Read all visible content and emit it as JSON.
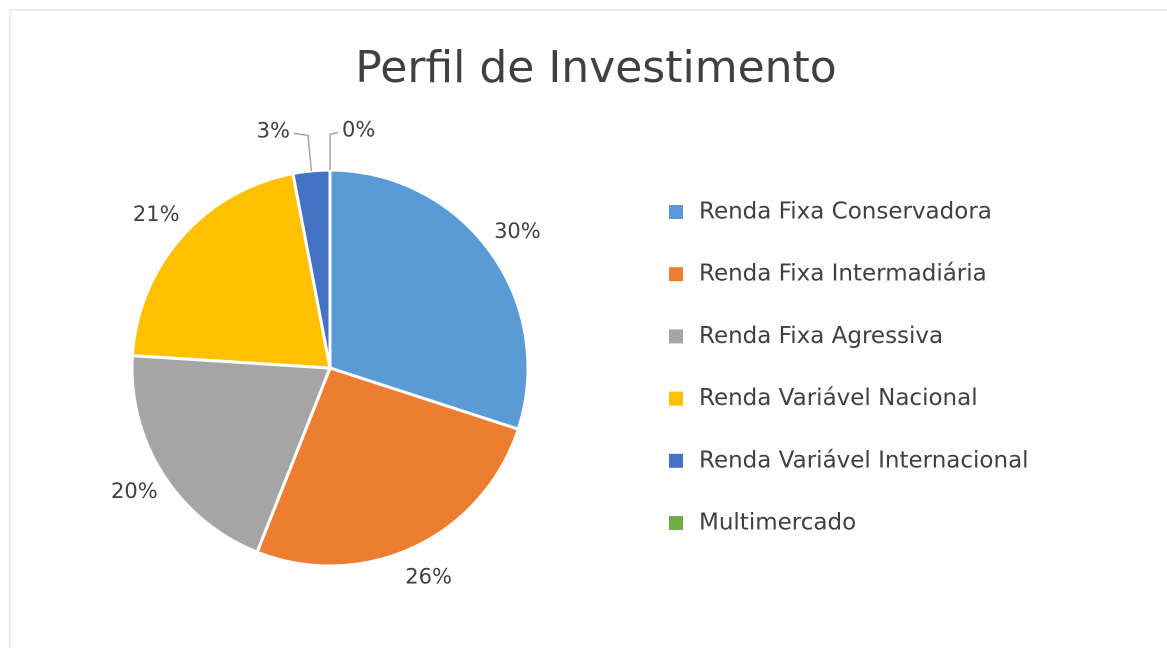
{
  "chart_data": {
    "type": "pie",
    "title": "Perfil de Investimento",
    "categories": [
      "Renda Fixa Conservadora",
      "Renda Fixa Intermadiária",
      "Renda Fixa Agressiva",
      "Renda Variável Nacional",
      "Renda Variável Internacional",
      "Multimercado"
    ],
    "values": [
      30,
      26,
      20,
      21,
      3,
      0
    ],
    "value_labels": [
      "30%",
      "26%",
      "20%",
      "21%",
      "3%",
      "0%"
    ],
    "colors": [
      "#5b9bd5",
      "#ed7d31",
      "#a5a5a5",
      "#ffc000",
      "#4472c4",
      "#70ad47"
    ],
    "legend": "right"
  }
}
